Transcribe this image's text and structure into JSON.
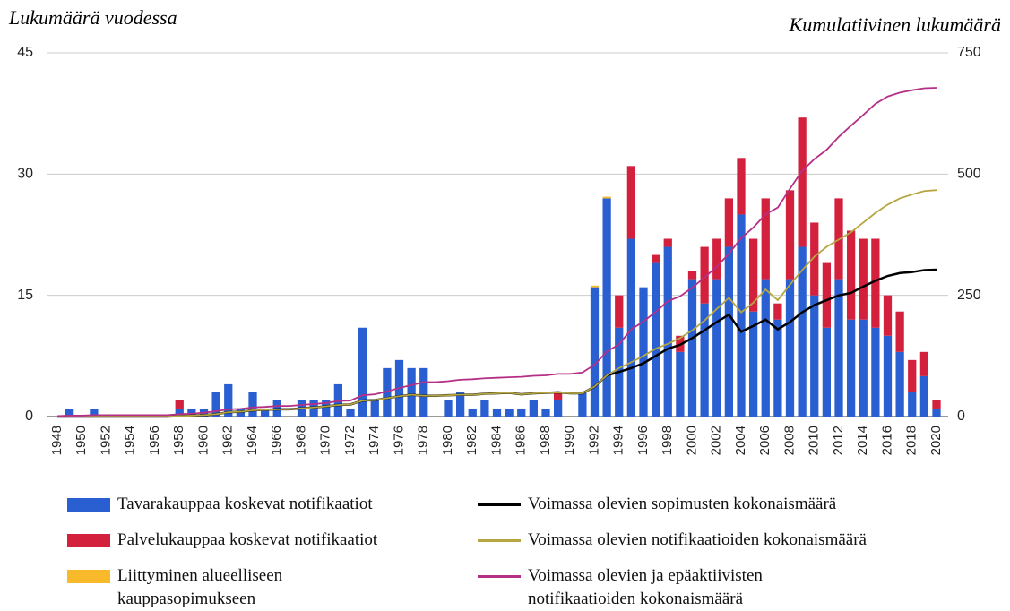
{
  "chart_data": {
    "type": "bar",
    "stacked": true,
    "grid": true,
    "y_title": "Lukumäärä vuodessa",
    "y2_title": "Kumulatiivinen lukumäärä",
    "categories": [
      "1948",
      null,
      "1950",
      null,
      "1952",
      null,
      "1954",
      null,
      "1956",
      null,
      "1958",
      null,
      "1960",
      null,
      "1962",
      null,
      "1964",
      null,
      "1966",
      null,
      "1968",
      null,
      "1970",
      null,
      "1972",
      null,
      "1974",
      null,
      "1976",
      null,
      "1978",
      null,
      "1980",
      null,
      "1982",
      null,
      "1984",
      null,
      "1986",
      null,
      "1988",
      null,
      "1990",
      null,
      "1992",
      null,
      "1994",
      null,
      "1996",
      null,
      "1998",
      null,
      "2000",
      null,
      "2002",
      null,
      "2004",
      null,
      "2006",
      null,
      "2008",
      null,
      "2010",
      null,
      "2012",
      null,
      "2014",
      null,
      "2016",
      null,
      "2018",
      null,
      "2020"
    ],
    "ylim": [
      0,
      45
    ],
    "yticks": [
      0,
      15,
      30,
      45
    ],
    "y2lim": [
      0,
      750
    ],
    "y2ticks": [
      0,
      250,
      500,
      750
    ],
    "series": [
      {
        "name": "Tavarakauppaa koskevat notifikaatiot",
        "color": "#2a5fd1",
        "type": "bar",
        "values": [
          0,
          1,
          0,
          1,
          0,
          0,
          0,
          0,
          0,
          0,
          1,
          1,
          1,
          3,
          4,
          1,
          3,
          1,
          2,
          0,
          2,
          2,
          2,
          4,
          1,
          11,
          2,
          6,
          7,
          6,
          6,
          0,
          2,
          3,
          1,
          2,
          1,
          1,
          1,
          2,
          1,
          2,
          0,
          3,
          16,
          27,
          11,
          22,
          16,
          19,
          21,
          8,
          17,
          14,
          17,
          21,
          25,
          13,
          17,
          12,
          17,
          21,
          15,
          11,
          17,
          12,
          12,
          11,
          10,
          8,
          3,
          5,
          1
        ]
      },
      {
        "name": "Palvelukauppaa koskevat notifikaatiot",
        "color": "#d3213d",
        "type": "bar",
        "values": [
          0,
          0,
          0,
          0,
          0,
          0,
          0,
          0,
          0,
          0,
          1,
          0,
          0,
          0,
          0,
          0,
          0,
          0,
          0,
          0,
          0,
          0,
          0,
          0,
          0,
          0,
          0,
          0,
          0,
          0,
          0,
          0,
          0,
          0,
          0,
          0,
          0,
          0,
          0,
          0,
          0,
          1,
          0,
          0,
          0,
          0,
          4,
          9,
          0,
          1,
          1,
          2,
          1,
          7,
          5,
          6,
          7,
          9,
          10,
          2,
          11,
          16,
          9,
          8,
          10,
          11,
          10,
          11,
          5,
          5,
          4,
          3,
          1
        ]
      },
      {
        "name": "Liittyminen alueelliseen kauppasopimukseen",
        "color": "#f8b92a",
        "type": "bar",
        "values": [
          0,
          0,
          0,
          0,
          0,
          0,
          0,
          0,
          0,
          0,
          0,
          0,
          0,
          0,
          0,
          0,
          0,
          0,
          0,
          0,
          0,
          0,
          0,
          0,
          0,
          0,
          0,
          0,
          0,
          0,
          0,
          0,
          0,
          0,
          0,
          0,
          0,
          0,
          0,
          0,
          0,
          0,
          0,
          0,
          0.2,
          0.2,
          0,
          0,
          0,
          0,
          0,
          0,
          0,
          0,
          0,
          0,
          0,
          0,
          0,
          0,
          0,
          0,
          0,
          0,
          0,
          0,
          0,
          0,
          0,
          0,
          0,
          0,
          0
        ]
      },
      {
        "name": "Voimassa olevien sopimusten kokonaismäärä",
        "color": "#000000",
        "type": "line",
        "axis": "y2",
        "values": [
          0,
          0,
          0,
          0,
          0,
          0,
          0,
          0,
          0,
          0,
          1,
          2,
          3,
          5,
          9,
          10,
          13,
          14,
          15,
          15,
          17,
          19,
          21,
          24,
          25,
          33,
          34,
          38,
          42,
          45,
          43,
          43,
          44,
          45,
          45,
          47,
          48,
          49,
          46,
          48,
          49,
          50,
          48,
          48,
          62,
          85,
          92,
          100,
          110,
          125,
          140,
          148,
          162,
          178,
          195,
          210,
          175,
          187,
          200,
          180,
          195,
          215,
          230,
          240,
          250,
          255,
          268,
          280,
          290,
          296,
          298,
          302,
          303
        ]
      },
      {
        "name": "Voimassa olevien notifikaatioiden kokonaismäärä",
        "color": "#b5a642",
        "type": "line",
        "axis": "y2",
        "values": [
          0,
          0,
          0,
          0,
          0,
          0,
          0,
          0,
          0,
          0,
          1,
          2,
          3,
          5,
          9,
          10,
          13,
          14,
          15,
          15,
          17,
          19,
          21,
          24,
          25,
          33,
          34,
          38,
          42,
          45,
          43,
          43,
          44,
          45,
          45,
          47,
          48,
          49,
          46,
          48,
          49,
          50,
          48,
          48,
          62,
          85,
          100,
          112,
          125,
          140,
          150,
          162,
          178,
          198,
          222,
          245,
          215,
          235,
          262,
          240,
          272,
          302,
          330,
          350,
          365,
          380,
          400,
          420,
          437,
          450,
          458,
          465,
          467
        ]
      },
      {
        "name": "Voimassa olevien ja epäaktiivisten notifikaatioiden kokonaismäärä",
        "color": "#b52f86",
        "type": "line",
        "axis": "y2",
        "values": [
          1,
          2,
          2,
          3,
          3,
          3,
          3,
          3,
          3,
          3,
          5,
          6,
          8,
          11,
          15,
          16,
          19,
          20,
          22,
          22,
          24,
          26,
          28,
          32,
          33,
          44,
          46,
          52,
          59,
          65,
          71,
          71,
          73,
          76,
          77,
          79,
          80,
          81,
          82,
          84,
          85,
          88,
          88,
          91,
          107,
          134,
          149,
          180,
          196,
          216,
          238,
          248,
          266,
          287,
          309,
          336,
          368,
          390,
          417,
          431,
          470,
          507,
          531,
          550,
          577,
          600,
          622,
          645,
          660,
          668,
          673,
          677,
          678
        ]
      }
    ]
  }
}
